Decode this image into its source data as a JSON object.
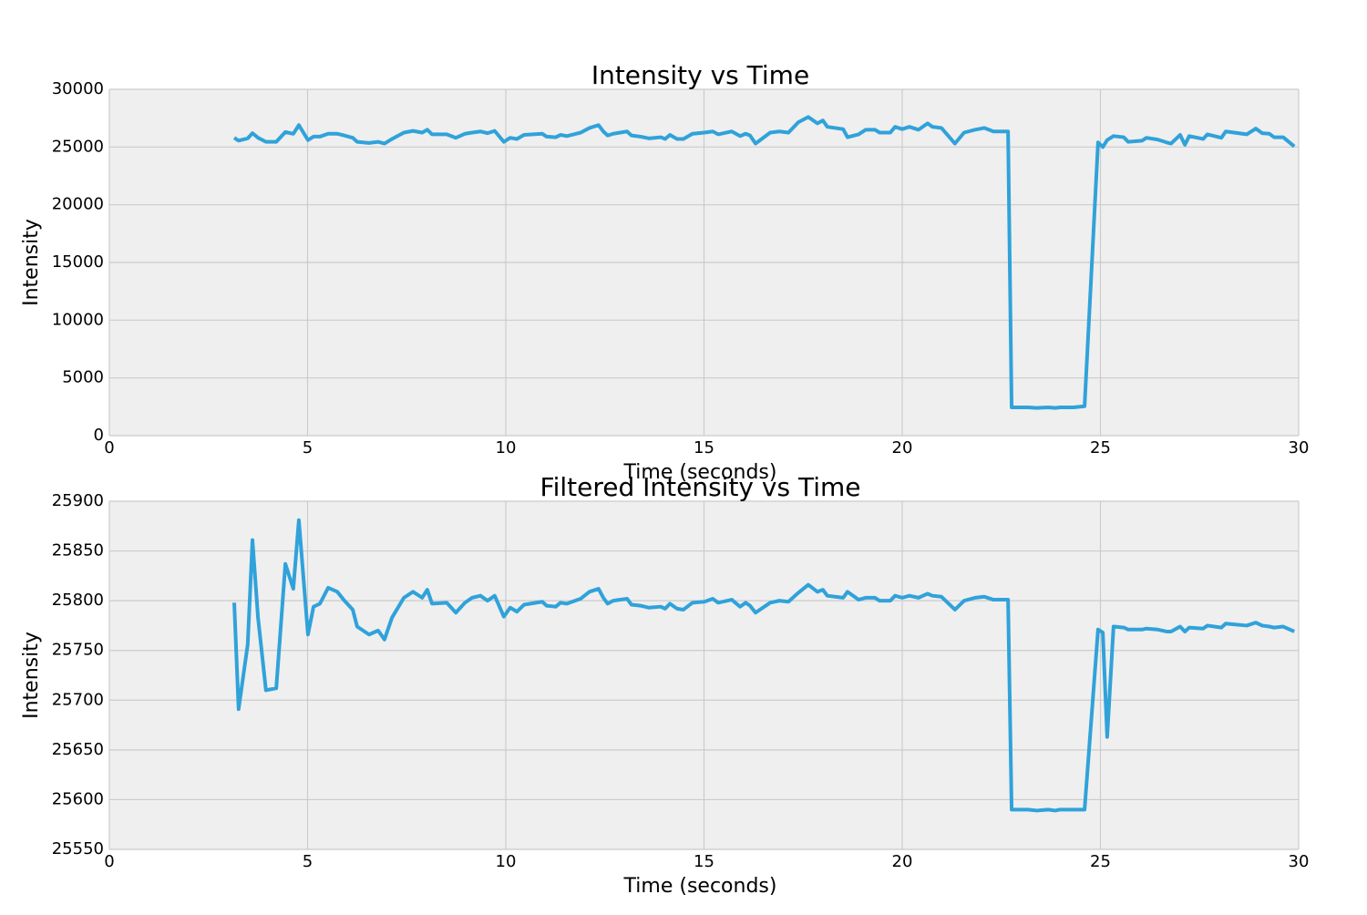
{
  "chart_data": [
    {
      "type": "line",
      "title": "Intensity vs Time",
      "x_label": "Time (seconds)",
      "y_label": "Intensity",
      "color": "#30a2da",
      "grid": true,
      "xlim": [
        0,
        30
      ],
      "xticks": [
        0,
        5,
        10,
        15,
        20,
        25,
        30
      ],
      "ylim": [
        0,
        30000
      ],
      "yticks": [
        0,
        5000,
        10000,
        15000,
        20000,
        25000,
        30000
      ],
      "x": [
        3.15,
        3.26,
        3.49,
        3.61,
        3.75,
        3.95,
        4.21,
        4.44,
        4.64,
        4.78,
        5.01,
        5.15,
        5.31,
        5.52,
        5.75,
        5.93,
        6.14,
        6.25,
        6.55,
        6.78,
        6.94,
        7.13,
        7.43,
        7.66,
        7.89,
        8.02,
        8.14,
        8.51,
        8.74,
        8.97,
        9.15,
        9.36,
        9.54,
        9.72,
        9.95,
        10.11,
        10.28,
        10.46,
        10.92,
        11.03,
        11.26,
        11.38,
        11.54,
        11.89,
        12.11,
        12.34,
        12.46,
        12.57,
        12.71,
        13.06,
        13.17,
        13.4,
        13.61,
        13.91,
        14.02,
        14.14,
        14.32,
        14.48,
        14.71,
        15.01,
        15.22,
        15.36,
        15.7,
        15.91,
        16.05,
        16.16,
        16.3,
        16.67,
        16.9,
        17.13,
        17.38,
        17.63,
        17.86,
        18.0,
        18.11,
        18.51,
        18.62,
        18.9,
        19.08,
        19.31,
        19.43,
        19.7,
        19.82,
        20.0,
        20.18,
        20.41,
        20.64,
        20.76,
        20.99,
        21.33,
        21.56,
        21.84,
        22.07,
        22.3,
        22.67,
        22.76,
        23.17,
        23.4,
        23.68,
        23.86,
        23.98,
        24.32,
        24.6,
        24.94,
        25.06,
        25.17,
        25.33,
        25.59,
        25.7,
        26.05,
        26.16,
        26.44,
        26.67,
        26.78,
        27.01,
        27.13,
        27.24,
        27.59,
        27.7,
        28.05,
        28.16,
        28.69,
        28.92,
        29.08,
        29.26,
        29.38,
        29.61,
        29.89
      ],
      "values": [
        25800,
        25550,
        25750,
        26200,
        25800,
        25450,
        25450,
        26300,
        26150,
        26900,
        25600,
        25900,
        25900,
        26150,
        26150,
        26000,
        25800,
        25450,
        25350,
        25450,
        25300,
        25700,
        26250,
        26400,
        26250,
        26500,
        26100,
        26100,
        25800,
        26150,
        26250,
        26350,
        26200,
        26400,
        25450,
        25800,
        25700,
        26050,
        26150,
        25900,
        25850,
        26050,
        25950,
        26250,
        26650,
        26900,
        26350,
        26000,
        26150,
        26350,
        26000,
        25900,
        25750,
        25850,
        25700,
        26050,
        25700,
        25700,
        26150,
        26250,
        26350,
        26100,
        26350,
        25950,
        26150,
        26000,
        25300,
        26250,
        26350,
        26250,
        27150,
        27600,
        27050,
        27300,
        26750,
        26550,
        25850,
        26100,
        26500,
        26500,
        26250,
        26250,
        26750,
        26550,
        26750,
        26500,
        27050,
        26750,
        26650,
        25300,
        26250,
        26500,
        26650,
        26350,
        26350,
        2450,
        2450,
        2400,
        2450,
        2400,
        2450,
        2450,
        2550,
        25400,
        25000,
        25600,
        25950,
        25850,
        25450,
        25550,
        25800,
        25650,
        25400,
        25300,
        26050,
        25200,
        25950,
        25700,
        26100,
        25800,
        26350,
        26100,
        26600,
        26200,
        26150,
        25850,
        25850,
        25050
      ]
    },
    {
      "type": "line",
      "title": "Filtered Intensity vs Time",
      "x_label": "Time (seconds)",
      "y_label": "Intensity",
      "color": "#30a2da",
      "grid": true,
      "xlim": [
        0,
        30
      ],
      "xticks": [
        0,
        5,
        10,
        15,
        20,
        25,
        30
      ],
      "ylim": [
        25550,
        25900
      ],
      "yticks": [
        25550,
        25600,
        25650,
        25700,
        25750,
        25800,
        25850,
        25900
      ],
      "x": [
        3.15,
        3.26,
        3.49,
        3.61,
        3.75,
        3.95,
        4.21,
        4.44,
        4.64,
        4.78,
        5.01,
        5.15,
        5.31,
        5.52,
        5.75,
        5.93,
        6.14,
        6.25,
        6.55,
        6.78,
        6.94,
        7.13,
        7.43,
        7.66,
        7.89,
        8.02,
        8.14,
        8.51,
        8.74,
        8.97,
        9.15,
        9.36,
        9.54,
        9.72,
        9.95,
        10.11,
        10.28,
        10.46,
        10.92,
        11.03,
        11.26,
        11.38,
        11.54,
        11.89,
        12.11,
        12.34,
        12.46,
        12.57,
        12.71,
        13.06,
        13.17,
        13.4,
        13.61,
        13.91,
        14.02,
        14.14,
        14.32,
        14.48,
        14.71,
        15.01,
        15.22,
        15.36,
        15.7,
        15.91,
        16.05,
        16.16,
        16.3,
        16.67,
        16.9,
        17.13,
        17.38,
        17.63,
        17.86,
        18.0,
        18.11,
        18.51,
        18.62,
        18.9,
        19.08,
        19.31,
        19.43,
        19.7,
        19.82,
        20.0,
        20.18,
        20.41,
        20.64,
        20.76,
        20.99,
        21.33,
        21.56,
        21.84,
        22.07,
        22.3,
        22.67,
        22.76,
        23.17,
        23.4,
        23.68,
        23.86,
        23.98,
        24.32,
        24.6,
        24.94,
        25.06,
        25.17,
        25.33,
        25.59,
        25.7,
        26.05,
        26.16,
        26.44,
        26.67,
        26.78,
        27.01,
        27.13,
        27.24,
        27.59,
        27.7,
        28.05,
        28.16,
        28.69,
        28.92,
        29.08,
        29.26,
        29.38,
        29.61,
        29.89
      ],
      "values": [
        25798,
        25691,
        25756,
        25861,
        25783,
        25710,
        25712,
        25837,
        25812,
        25881,
        25766,
        25794,
        25797,
        25813,
        25809,
        25800,
        25791,
        25774,
        25766,
        25770,
        25761,
        25783,
        25803,
        25809,
        25803,
        25811,
        25797,
        25798,
        25788,
        25798,
        25803,
        25805,
        25800,
        25805,
        25784,
        25793,
        25789,
        25796,
        25799,
        25795,
        25794,
        25798,
        25797,
        25802,
        25809,
        25812,
        25803,
        25797,
        25800,
        25802,
        25796,
        25795,
        25793,
        25794,
        25792,
        25797,
        25792,
        25791,
        25798,
        25799,
        25802,
        25798,
        25801,
        25794,
        25798,
        25795,
        25788,
        25798,
        25800,
        25799,
        25808,
        25816,
        25809,
        25811,
        25805,
        25803,
        25809,
        25801,
        25803,
        25803,
        25800,
        25800,
        25805,
        25803,
        25805,
        25803,
        25807,
        25805,
        25804,
        25791,
        25800,
        25803,
        25804,
        25801,
        25801,
        25590,
        25590,
        25589,
        25590,
        25589,
        25590,
        25590,
        25590,
        25771,
        25768,
        25663,
        25774,
        25773,
        25771,
        25771,
        25772,
        25771,
        25769,
        25769,
        25774,
        25769,
        25773,
        25772,
        25775,
        25773,
        25777,
        25775,
        25778,
        25775,
        25774,
        25773,
        25774,
        25769
      ]
    }
  ]
}
